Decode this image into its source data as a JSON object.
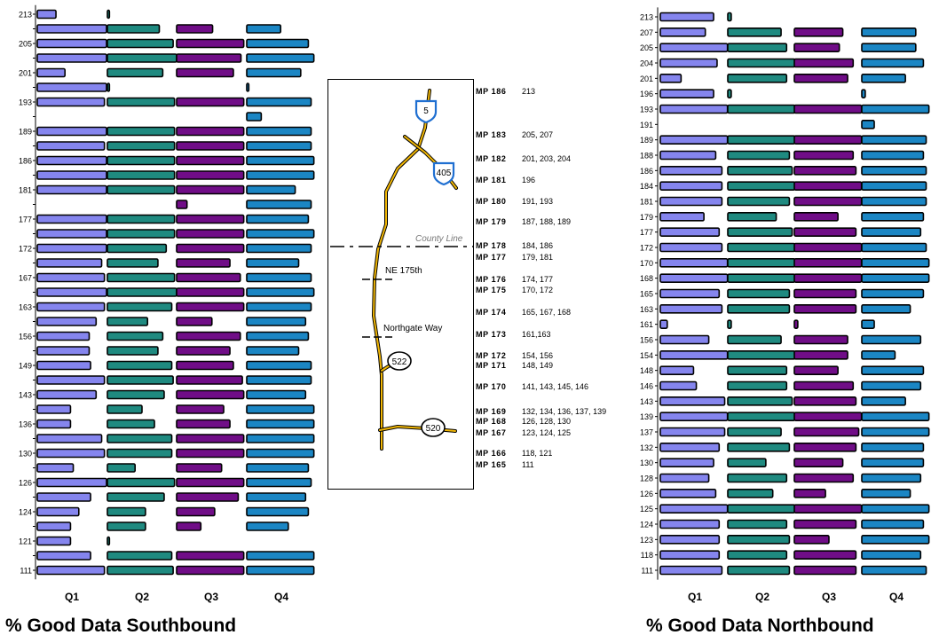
{
  "colors": {
    "Q1": "#8585ee",
    "Q2": "#1f8a80",
    "Q3": "#700d87",
    "Q4": "#1b86c4",
    "outline": "#000000",
    "road": "#f2b705",
    "interstate": "#1f6fd1"
  },
  "southbound": {
    "title": "% Good Data Southbound",
    "quarters": [
      "Q1",
      "Q2",
      "Q3",
      "Q4"
    ],
    "rows": [
      {
        "label": "213",
        "values": [
          27,
          3,
          0,
          0
        ]
      },
      {
        "label": "",
        "values": [
          100,
          75,
          52,
          49
        ]
      },
      {
        "label": "205",
        "values": [
          100,
          95,
          97,
          89
        ]
      },
      {
        "label": "",
        "values": [
          100,
          100,
          93,
          97
        ]
      },
      {
        "label": "201",
        "values": [
          40,
          80,
          82,
          78
        ]
      },
      {
        "label": "",
        "values": [
          100,
          3,
          0,
          3
        ]
      },
      {
        "label": "193",
        "values": [
          97,
          97,
          97,
          93
        ]
      },
      {
        "label": "",
        "values": [
          0,
          0,
          0,
          21
        ]
      },
      {
        "label": "189",
        "values": [
          100,
          97,
          97,
          93
        ]
      },
      {
        "label": "",
        "values": [
          97,
          97,
          97,
          93
        ]
      },
      {
        "label": "186",
        "values": [
          100,
          97,
          97,
          97
        ]
      },
      {
        "label": "",
        "values": [
          100,
          97,
          97,
          97
        ]
      },
      {
        "label": "181",
        "values": [
          100,
          97,
          97,
          70
        ]
      },
      {
        "label": "",
        "values": [
          0,
          0,
          15,
          93
        ]
      },
      {
        "label": "177",
        "values": [
          100,
          97,
          97,
          89
        ]
      },
      {
        "label": "",
        "values": [
          100,
          97,
          97,
          97
        ]
      },
      {
        "label": "172",
        "values": [
          100,
          85,
          97,
          93
        ]
      },
      {
        "label": "",
        "values": [
          93,
          73,
          77,
          75
        ]
      },
      {
        "label": "167",
        "values": [
          97,
          97,
          92,
          93
        ]
      },
      {
        "label": "",
        "values": [
          100,
          100,
          97,
          97
        ]
      },
      {
        "label": "163",
        "values": [
          97,
          93,
          97,
          93
        ]
      },
      {
        "label": "",
        "values": [
          85,
          58,
          51,
          85
        ]
      },
      {
        "label": "156",
        "values": [
          75,
          80,
          92,
          89
        ]
      },
      {
        "label": "",
        "values": [
          75,
          73,
          77,
          75
        ]
      },
      {
        "label": "149",
        "values": [
          77,
          93,
          82,
          93
        ]
      },
      {
        "label": "",
        "values": [
          97,
          95,
          95,
          93
        ]
      },
      {
        "label": "143",
        "values": [
          85,
          82,
          97,
          85
        ]
      },
      {
        "label": "",
        "values": [
          48,
          50,
          68,
          97
        ]
      },
      {
        "label": "136",
        "values": [
          48,
          68,
          77,
          97
        ]
      },
      {
        "label": "",
        "values": [
          93,
          93,
          97,
          97
        ]
      },
      {
        "label": "130",
        "values": [
          97,
          93,
          97,
          97
        ]
      },
      {
        "label": "",
        "values": [
          52,
          40,
          65,
          89
        ]
      },
      {
        "label": "126",
        "values": [
          100,
          97,
          97,
          93
        ]
      },
      {
        "label": "",
        "values": [
          77,
          82,
          89,
          85
        ]
      },
      {
        "label": "124",
        "values": [
          60,
          55,
          55,
          89
        ]
      },
      {
        "label": "",
        "values": [
          48,
          55,
          35,
          60
        ]
      },
      {
        "label": "121",
        "values": [
          48,
          3,
          0,
          0
        ]
      },
      {
        "label": "",
        "values": [
          77,
          93,
          97,
          97
        ]
      },
      {
        "label": "111",
        "values": [
          97,
          95,
          97,
          97
        ]
      }
    ]
  },
  "northbound": {
    "title": "% Good Data Northbound",
    "quarters": [
      "Q1",
      "Q2",
      "Q3",
      "Q4"
    ],
    "rows": [
      {
        "label": "213",
        "values": [
          77,
          5,
          0,
          0
        ]
      },
      {
        "label": "207",
        "values": [
          65,
          77,
          70,
          78
        ]
      },
      {
        "label": "205",
        "values": [
          97,
          85,
          65,
          78
        ]
      },
      {
        "label": "204",
        "values": [
          82,
          97,
          85,
          89
        ]
      },
      {
        "label": "201",
        "values": [
          30,
          85,
          77,
          63
        ]
      },
      {
        "label": "196",
        "values": [
          77,
          5,
          0,
          5
        ]
      },
      {
        "label": "193",
        "values": [
          97,
          97,
          97,
          97
        ]
      },
      {
        "label": "191",
        "values": [
          0,
          0,
          0,
          18
        ]
      },
      {
        "label": "189",
        "values": [
          97,
          97,
          97,
          93
        ]
      },
      {
        "label": "188",
        "values": [
          80,
          89,
          85,
          89
        ]
      },
      {
        "label": "186",
        "values": [
          89,
          93,
          89,
          93
        ]
      },
      {
        "label": "184",
        "values": [
          89,
          97,
          97,
          93
        ]
      },
      {
        "label": "181",
        "values": [
          89,
          89,
          97,
          93
        ]
      },
      {
        "label": "179",
        "values": [
          63,
          70,
          63,
          89
        ]
      },
      {
        "label": "177",
        "values": [
          85,
          93,
          89,
          85
        ]
      },
      {
        "label": "172",
        "values": [
          89,
          97,
          97,
          93
        ]
      },
      {
        "label": "170",
        "values": [
          97,
          97,
          97,
          97
        ]
      },
      {
        "label": "168",
        "values": [
          97,
          97,
          97,
          97
        ]
      },
      {
        "label": "165",
        "values": [
          85,
          89,
          89,
          89
        ]
      },
      {
        "label": "163",
        "values": [
          89,
          89,
          89,
          70
        ]
      },
      {
        "label": "161",
        "values": [
          10,
          5,
          5,
          18
        ]
      },
      {
        "label": "156",
        "values": [
          70,
          77,
          77,
          85
        ]
      },
      {
        "label": "154",
        "values": [
          97,
          97,
          77,
          48
        ]
      },
      {
        "label": "148",
        "values": [
          48,
          85,
          63,
          89
        ]
      },
      {
        "label": "146",
        "values": [
          52,
          85,
          85,
          85
        ]
      },
      {
        "label": "143",
        "values": [
          93,
          93,
          89,
          63
        ]
      },
      {
        "label": "139",
        "values": [
          97,
          97,
          97,
          97
        ]
      },
      {
        "label": "137",
        "values": [
          93,
          77,
          93,
          97
        ]
      },
      {
        "label": "132",
        "values": [
          85,
          89,
          89,
          89
        ]
      },
      {
        "label": "130",
        "values": [
          77,
          55,
          70,
          89
        ]
      },
      {
        "label": "128",
        "values": [
          70,
          85,
          85,
          85
        ]
      },
      {
        "label": "126",
        "values": [
          80,
          65,
          45,
          70
        ]
      },
      {
        "label": "125",
        "values": [
          97,
          97,
          97,
          97
        ]
      },
      {
        "label": "124",
        "values": [
          85,
          85,
          89,
          89
        ]
      },
      {
        "label": "123",
        "values": [
          85,
          89,
          50,
          97
        ]
      },
      {
        "label": "118",
        "values": [
          85,
          85,
          89,
          85
        ]
      },
      {
        "label": "111",
        "values": [
          89,
          89,
          89,
          93
        ]
      }
    ]
  },
  "map": {
    "mileposts": [
      {
        "mp": "MP 186",
        "stations": "213"
      },
      {
        "mp": "MP 183",
        "stations": "205, 207"
      },
      {
        "mp": "MP 182",
        "stations": "201, 203, 204"
      },
      {
        "mp": "MP 181",
        "stations": "196"
      },
      {
        "mp": "MP 180",
        "stations": "191, 193"
      },
      {
        "mp": "MP 179",
        "stations": "187, 188, 189"
      },
      {
        "mp": "MP 178",
        "stations": "184, 186"
      },
      {
        "mp": "MP 177",
        "stations": "179, 181"
      },
      {
        "mp": "MP 176",
        "stations": "174, 177"
      },
      {
        "mp": "MP 175",
        "stations": "170, 172"
      },
      {
        "mp": "MP 174",
        "stations": "165, 167, 168"
      },
      {
        "mp": "MP 173",
        "stations": "161,163"
      },
      {
        "mp": "MP 172",
        "stations": "154, 156"
      },
      {
        "mp": "MP 171",
        "stations": "148, 149"
      },
      {
        "mp": "MP 170",
        "stations": "141, 143, 145, 146"
      },
      {
        "mp": "MP 169",
        "stations": "132, 134, 136, 137, 139"
      },
      {
        "mp": "MP 168",
        "stations": "126, 128, 130"
      },
      {
        "mp": "MP 167",
        "stations": "123, 124, 125"
      },
      {
        "mp": "MP 166",
        "stations": "118, 121"
      },
      {
        "mp": "MP 165",
        "stations": "111"
      }
    ],
    "labels": {
      "county_line": "County Line",
      "ne175": "NE 175th",
      "northgate": "Northgate Way",
      "i5": "5",
      "i405": "405",
      "sr522": "522",
      "sr520": "520"
    }
  }
}
